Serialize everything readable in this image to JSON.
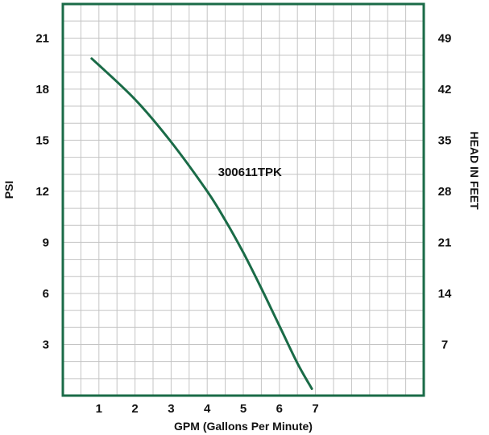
{
  "chart_data": {
    "type": "line",
    "title": "",
    "xlabel": "GPM (Gallons Per Minute)",
    "ylabel": "PSI",
    "y2label": "HEAD IN FEET",
    "xlim": [
      0,
      10
    ],
    "ylim": [
      0,
      23
    ],
    "y2lim": [
      0,
      53.67
    ],
    "x_ticks": [
      "1",
      "2",
      "3",
      "4",
      "5",
      "6",
      "7"
    ],
    "x_tick_values": [
      1,
      2,
      3,
      4,
      5,
      6,
      7
    ],
    "y_ticks": [
      "3",
      "6",
      "9",
      "12",
      "15",
      "18",
      "21"
    ],
    "y_tick_values": [
      3,
      6,
      9,
      12,
      15,
      18,
      21
    ],
    "y2_ticks": [
      "7",
      "14",
      "21",
      "28",
      "35",
      "42",
      "49"
    ],
    "y2_tick_values": [
      7,
      14,
      21,
      28,
      35,
      42,
      49
    ],
    "grid": true,
    "grid_step_x": 0.5,
    "grid_step_y": 1,
    "series": [
      {
        "name": "300611TPK",
        "x": [
          0.8,
          2.0,
          3.0,
          4.0,
          4.5,
          5.0,
          5.5,
          6.0,
          6.5,
          6.9
        ],
        "y": [
          19.8,
          17.4,
          14.9,
          12.0,
          10.3,
          8.4,
          6.3,
          4.1,
          1.9,
          0.4
        ]
      }
    ],
    "series_label_position": {
      "x": 4.3,
      "y": 12.9
    },
    "colors": {
      "frame": "#1a6b47",
      "line": "#1a6b47",
      "grid": "#c4c4c4",
      "text": "#111111"
    }
  }
}
